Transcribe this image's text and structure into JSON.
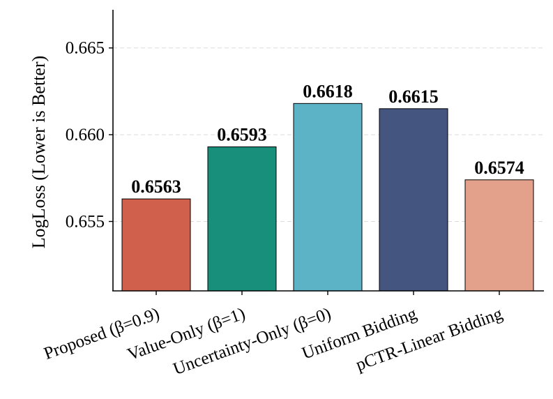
{
  "chart_data": {
    "type": "bar",
    "title": "",
    "xlabel": "",
    "ylabel": "LogLoss (Lower is Better)",
    "ylim": [
      0.651,
      0.6672
    ],
    "yticks": [
      0.655,
      0.66,
      0.665
    ],
    "ytick_labels": [
      "0.655",
      "0.660",
      "0.665"
    ],
    "grid": "horizontal dashed",
    "categories": [
      "Proposed (β=0.9)",
      "Value-Only (β=1)",
      "Uncertainty-Only (β=0)",
      "Uniform Bidding",
      "pCTR-Linear Bidding"
    ],
    "values": [
      0.6563,
      0.6593,
      0.6618,
      0.6615,
      0.6574
    ],
    "value_labels": [
      "0.6563",
      "0.6593",
      "0.6618",
      "0.6615",
      "0.6574"
    ],
    "colors": [
      "#d05f4c",
      "#178f7a",
      "#5db3c6",
      "#44567f",
      "#e3a18b"
    ]
  }
}
